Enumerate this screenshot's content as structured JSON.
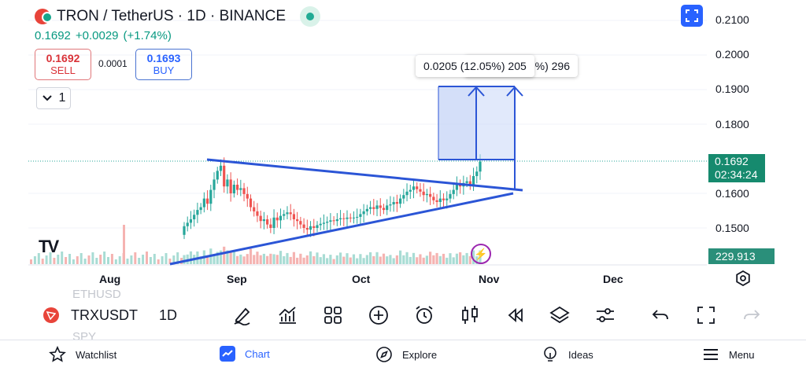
{
  "header": {
    "title": "TRON / TetherUS · 1D · BINANCE",
    "last": "0.1692",
    "change": "+0.0029",
    "change_pct": "(+1.74%)"
  },
  "trade": {
    "sell_price": "0.1692",
    "sell_label": "SELL",
    "spread": "0.0001",
    "buy_price": "0.1693",
    "buy_label": "BUY"
  },
  "interval_count": "1",
  "price_axis": {
    "ticks": [
      "0.2100",
      "0.2000",
      "0.1900",
      "0.1800",
      "0.1600",
      "0.1500"
    ],
    "current_price": "0.1692",
    "countdown": "02:34:24",
    "volume_label": "229.913 M"
  },
  "measure": {
    "tooltip_front": "0.0205 (12.05%) 205",
    "tooltip_back": "%) 296"
  },
  "time_axis": [
    "Aug",
    "Sep",
    "Oct",
    "Nov",
    "Dec"
  ],
  "toolbar": {
    "symbol": "TRXUSDT",
    "resolution": "1D",
    "ghost_above": "ETHUSD",
    "ghost_below": "SPY",
    "tools": [
      "pencil-icon",
      "indicators-icon",
      "layouts-icon",
      "add-icon",
      "alert-icon",
      "candles-icon",
      "replay-icon",
      "layers-icon",
      "settings-icon",
      "undo-icon",
      "fullscreen-icon",
      "redo-icon"
    ]
  },
  "nav": [
    {
      "label": "Watchlist",
      "icon": "star-icon"
    },
    {
      "label": "Chart",
      "icon": "chart-icon"
    },
    {
      "label": "Explore",
      "icon": "compass-icon"
    },
    {
      "label": "Ideas",
      "icon": "bulb-icon"
    },
    {
      "label": "Menu",
      "icon": "menu-icon"
    }
  ],
  "colors": {
    "up": "#26a69a",
    "down": "#ef5350",
    "drawing": "#2b55d6",
    "accent": "#2962ff"
  },
  "chart_data": {
    "type": "candlestick",
    "symbol": "TRXUSDT",
    "timeframe": "1D",
    "x_labels": [
      "Aug",
      "Sep",
      "Oct",
      "Nov",
      "Dec"
    ],
    "ylim": [
      0.149,
      0.21
    ],
    "last_price": 0.1692,
    "closes": [
      0.1505,
      0.1515,
      0.1525,
      0.1538,
      0.1552,
      0.156,
      0.1585,
      0.157,
      0.161,
      0.164,
      0.1665,
      0.168,
      0.162,
      0.164,
      0.16,
      0.1625,
      0.161,
      0.1615,
      0.1598,
      0.1585,
      0.156,
      0.1548,
      0.1535,
      0.152,
      0.1525,
      0.151,
      0.15,
      0.153,
      0.1522,
      0.1535,
      0.154,
      0.1545,
      0.154,
      0.1525,
      0.152,
      0.151,
      0.15,
      0.1495,
      0.1505,
      0.15,
      0.1508,
      0.1512,
      0.1515,
      0.1518,
      0.1522,
      0.152,
      0.1525,
      0.1528,
      0.1526,
      0.153,
      0.1528,
      0.153,
      0.1532,
      0.154,
      0.1548,
      0.1555,
      0.156,
      0.1555,
      0.1565,
      0.1558,
      0.1552,
      0.1565,
      0.1568,
      0.1575,
      0.157,
      0.1585,
      0.1595,
      0.1605,
      0.161,
      0.162,
      0.1612,
      0.1605,
      0.1595,
      0.1598,
      0.159,
      0.158,
      0.1575,
      0.1585,
      0.158,
      0.1585,
      0.1598,
      0.161,
      0.1625,
      0.162,
      0.163,
      0.1635,
      0.1625,
      0.165,
      0.1663,
      0.1692
    ],
    "volume_last": "229.913 M"
  }
}
